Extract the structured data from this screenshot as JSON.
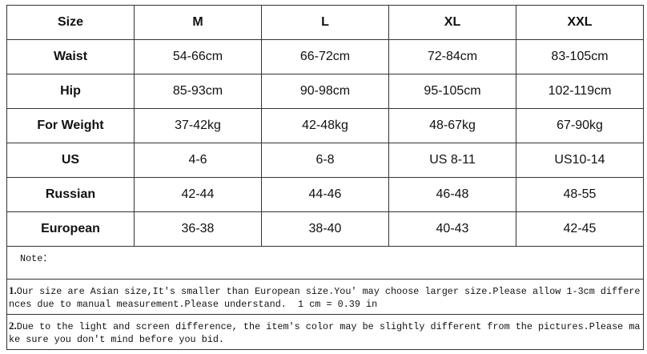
{
  "table": {
    "header": [
      "Size",
      "M",
      "L",
      "XL",
      "XXL"
    ],
    "rows": [
      [
        "Waist",
        "54-66cm",
        "66-72cm",
        "72-84cm",
        "83-105cm"
      ],
      [
        "Hip",
        "85-93cm",
        "90-98cm",
        "95-105cm",
        "102-119cm"
      ],
      [
        "For Weight",
        "37-42kg",
        "42-48kg",
        "48-67kg",
        "67-90kg"
      ],
      [
        "US",
        "4-6",
        "6-8",
        "US 8-11",
        "US10-14"
      ],
      [
        "Russian",
        "42-44",
        "44-46",
        "46-48",
        "48-55"
      ],
      [
        "European",
        "36-38",
        "38-40",
        "40-43",
        "42-45"
      ]
    ]
  },
  "note": {
    "label": "Note：",
    "items": [
      {
        "number": "1.",
        "text": "Our size are Asian size,It's smaller than European size.You' may choose larger size.Please allow 1-3cm differences due to manual measurement.Please understand.  1 cm = 0.39 in"
      },
      {
        "number": "2.",
        "text": "Due to the light and screen difference, the item's color may be slightly different from the pictures.Please make sure you don't mind before you bid."
      }
    ]
  }
}
